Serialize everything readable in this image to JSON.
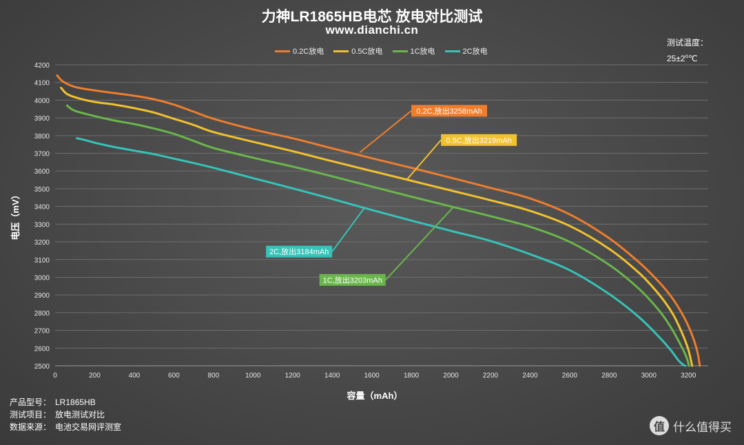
{
  "header": {
    "title": "力神LR1865HB电芯 放电对比测试",
    "subtitle": "www.dianchi.cn",
    "temp_label": "测试温度：",
    "temp_value": "25±2",
    "temp_unit": "℃"
  },
  "notes": [
    {
      "key": "产品型号：",
      "value": "LR1865HB"
    },
    {
      "key": "测试项目：",
      "value": "放电测试对比"
    },
    {
      "key": "数据来源：",
      "value": "电池交易网评测室"
    }
  ],
  "watermark": {
    "icon": "值",
    "text": "什么值得买"
  },
  "chart_data": {
    "type": "line",
    "xlabel": "容量（mAh）",
    "ylabel": "电压（mV）",
    "xlim": [
      0,
      3300
    ],
    "ylim": [
      2500,
      4200
    ],
    "xticks": [
      0,
      200,
      400,
      600,
      800,
      1000,
      1200,
      1400,
      1600,
      1800,
      2000,
      2200,
      2400,
      2600,
      2800,
      3000,
      3200
    ],
    "yticks": [
      2500,
      2600,
      2700,
      2800,
      2900,
      3000,
      3100,
      3200,
      3300,
      3400,
      3500,
      3600,
      3700,
      3800,
      3900,
      4000,
      4100,
      4200
    ],
    "grid": true,
    "legend_position": "top",
    "series": [
      {
        "name": "0.2C放电",
        "color": "#ef7d2c",
        "callout": "0.2C,放出3258mAh",
        "x": [
          10,
          40,
          100,
          200,
          300,
          400,
          500,
          600,
          700,
          800,
          1000,
          1200,
          1400,
          1600,
          1800,
          2000,
          2200,
          2400,
          2600,
          2800,
          2950,
          3050,
          3120,
          3180,
          3220,
          3245,
          3258
        ],
        "y": [
          4140,
          4105,
          4075,
          4055,
          4040,
          4025,
          4005,
          3975,
          3935,
          3895,
          3835,
          3785,
          3728,
          3672,
          3618,
          3562,
          3505,
          3445,
          3355,
          3220,
          3085,
          2975,
          2880,
          2770,
          2670,
          2580,
          2500
        ]
      },
      {
        "name": "0.5C放电",
        "color": "#f2c12e",
        "callout": "0.5C,放出3219mAh",
        "x": [
          30,
          60,
          120,
          200,
          300,
          400,
          500,
          600,
          700,
          800,
          1000,
          1200,
          1400,
          1600,
          1800,
          2000,
          2200,
          2400,
          2600,
          2800,
          2950,
          3050,
          3120,
          3170,
          3200,
          3219
        ],
        "y": [
          4070,
          4035,
          4010,
          3990,
          3975,
          3955,
          3930,
          3895,
          3860,
          3820,
          3765,
          3712,
          3655,
          3600,
          3545,
          3490,
          3435,
          3375,
          3290,
          3160,
          3025,
          2905,
          2795,
          2680,
          2590,
          2500
        ]
      },
      {
        "name": "1C放电",
        "color": "#6ab64b",
        "callout": "1C,放出3203mAh",
        "x": [
          60,
          100,
          200,
          300,
          400,
          500,
          600,
          700,
          800,
          1000,
          1200,
          1400,
          1600,
          1800,
          2000,
          2200,
          2400,
          2600,
          2800,
          2950,
          3050,
          3110,
          3160,
          3190,
          3203
        ],
        "y": [
          3970,
          3940,
          3910,
          3885,
          3865,
          3840,
          3810,
          3770,
          3730,
          3675,
          3625,
          3570,
          3512,
          3455,
          3400,
          3345,
          3285,
          3200,
          3070,
          2935,
          2815,
          2720,
          2620,
          2550,
          2500
        ]
      },
      {
        "name": "2C放电",
        "color": "#36c3b8",
        "callout": "2C,放出3184mAh",
        "x": [
          110,
          150,
          200,
          300,
          400,
          500,
          600,
          700,
          800,
          1000,
          1200,
          1400,
          1600,
          1800,
          2000,
          2200,
          2400,
          2600,
          2800,
          2950,
          3050,
          3110,
          3150,
          3175,
          3184
        ],
        "y": [
          3785,
          3775,
          3760,
          3735,
          3715,
          3695,
          3670,
          3645,
          3618,
          3560,
          3502,
          3442,
          3380,
          3320,
          3262,
          3205,
          3130,
          3040,
          2905,
          2775,
          2665,
          2590,
          2530,
          2505,
          2500
        ]
      }
    ],
    "callouts": [
      {
        "series": 0,
        "anchor_x": 1540,
        "anchor_y": 3705,
        "box_x": 1800,
        "box_y": 3940
      },
      {
        "series": 1,
        "anchor_x": 1780,
        "anchor_y": 3555,
        "box_x": 1950,
        "box_y": 3775
      },
      {
        "series": 3,
        "anchor_x": 1560,
        "anchor_y": 3387,
        "box_x": 1400,
        "box_y": 3145
      },
      {
        "series": 2,
        "anchor_x": 2010,
        "anchor_y": 3393,
        "box_x": 1670,
        "box_y": 2985
      }
    ]
  }
}
